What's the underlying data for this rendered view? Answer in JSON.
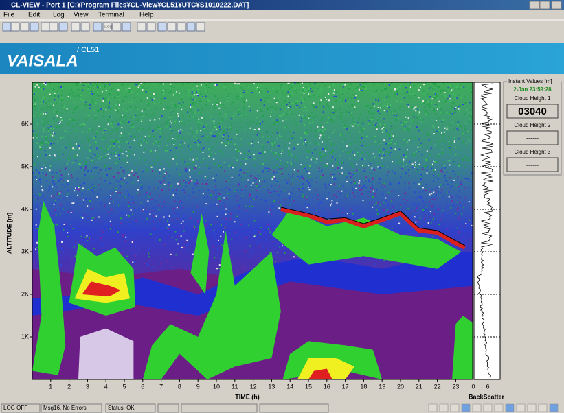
{
  "window": {
    "title": "CL-VIEW - Port 1  [C:¥Program Files¥CL-View¥CL51¥UTC¥S1010222.DAT]",
    "menu": [
      "File",
      "Edit",
      "Log",
      "View",
      "Terminal",
      "Help"
    ],
    "toolbar_label": "Log"
  },
  "banner": {
    "brand": "VAISALA",
    "model": "/ CL51"
  },
  "plot": {
    "y_axis_label": "ALTITUDE [m]",
    "y_ticks": [
      "1K",
      "2K",
      "3K",
      "4K",
      "5K",
      "6K"
    ],
    "x_axis_label": "TIME (h)",
    "x_ticks": [
      1,
      2,
      3,
      4,
      5,
      6,
      7,
      8,
      9,
      10,
      11,
      12,
      13,
      14,
      15,
      16,
      17,
      18,
      19,
      20,
      21,
      22,
      23
    ],
    "side_label": "BackScatter",
    "side_ticks": [
      0,
      6
    ]
  },
  "instant_values": {
    "title": "Instant Values [m]",
    "timestamp": "2-Jan 23:59:28",
    "fields": [
      {
        "label": "Cloud Height 1",
        "value": "03040"
      },
      {
        "label": "Cloud Height 2",
        "value": "------"
      },
      {
        "label": "Cloud Height 3",
        "value": "------"
      }
    ]
  },
  "status_bar": [
    "LOG OFF",
    "Msg16, No Errors",
    "Status: OK"
  ]
}
